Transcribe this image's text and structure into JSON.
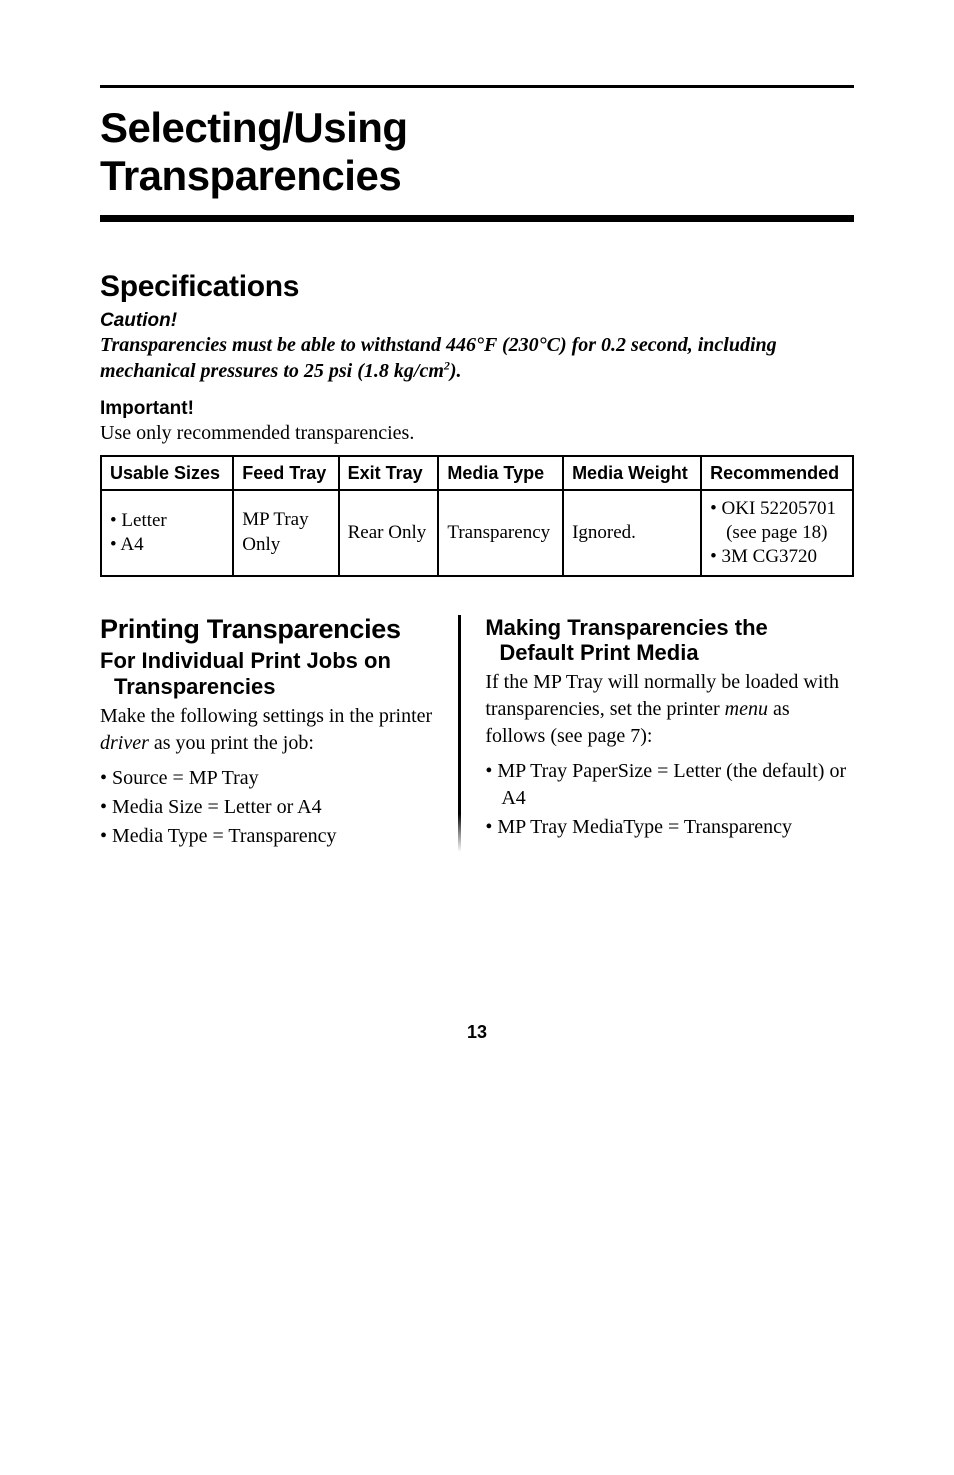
{
  "chapter_title_line1": "Selecting/Using",
  "chapter_title_line2": "Transparencies",
  "spec_heading": "Specifications",
  "caution_label": "Caution!",
  "caution_body_pre": "Transparencies must be able to withstand 446°F (230°C) for 0.2 second, including mechanical pressures to 25 psi (1.8 kg/cm",
  "caution_body_sup": "2",
  "caution_body_post": ").",
  "important_label": "Important!",
  "important_body": "Use only recommended transparencies.",
  "table": {
    "headers": {
      "usable_sizes": "Usable Sizes",
      "feed_tray": "Feed Tray",
      "exit_tray": "Exit Tray",
      "media_type": "Media Type",
      "media_weight": "Media Weight",
      "recommended": "Recommended"
    },
    "row": {
      "sizes_b1": "Letter",
      "sizes_b2": "A4",
      "feed_l1": "MP Tray",
      "feed_l2": "Only",
      "exit": "Rear Only",
      "media_type": "Transparency",
      "media_weight": "Ignored.",
      "rec_b1": "OKI 52205701",
      "rec_sub": "(see page 18)",
      "rec_b2": "3M CG3720"
    }
  },
  "left": {
    "h2": "Printing Transparencies",
    "h3_l1": "For Individual Print Jobs on",
    "h3_l2": "Transparencies",
    "para_pre": "Make the following settings in the printer ",
    "para_em": "driver",
    "para_post": " as you print the job:",
    "b1": "Source = MP Tray",
    "b2": "Media Size = Letter or A4",
    "b3": "Media Type = Transparency"
  },
  "right": {
    "h3_l1": "Making Transparencies the",
    "h3_l2": "Default Print Media",
    "para_pre": "If the MP Tray will normally be loaded with transparencies, set the printer ",
    "para_em": "menu",
    "para_post": " as follows (see page 7):",
    "b1": "MP Tray PaperSize = Letter (the default) or A4",
    "b2": "MP Tray MediaType = Transparency"
  },
  "pagenum": "13"
}
